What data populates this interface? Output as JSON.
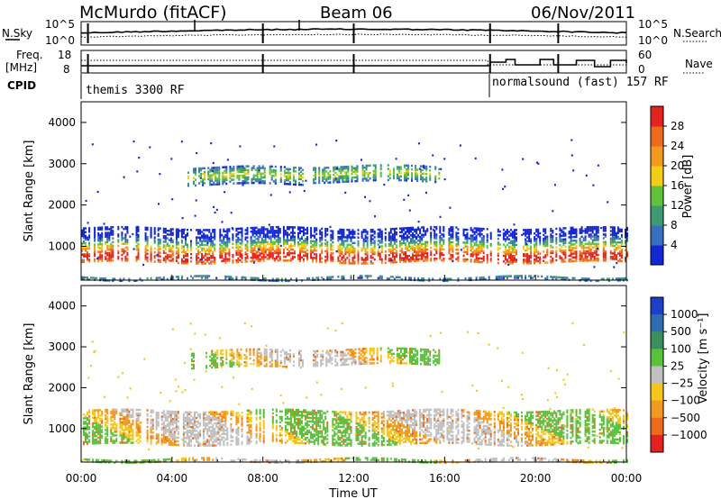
{
  "header": {
    "station": "McMurdo (fitACF)",
    "beam": "Beam 06",
    "date": "06/Nov/2011"
  },
  "left_labels": {
    "nsky": "N.Sky",
    "freq_top": "Freq.",
    "freq_unit": "[MHz]",
    "cpid": "CPID"
  },
  "right_labels": {
    "nsearch": "N.Search",
    "nave": "Nave"
  },
  "noise_panel": {
    "left_ticks": [
      "10^5",
      "10^0"
    ],
    "right_ticks": [
      "10^5",
      "10^0"
    ]
  },
  "freq_panel": {
    "left_ticks": [
      "18",
      "8"
    ],
    "right_ticks": [
      "60",
      "0"
    ]
  },
  "cpid_panel": {
    "mode1": "themis 3300 RF",
    "mode2": "normalsound (fast)  157 RF"
  },
  "chart_data": [
    {
      "type": "heatmap",
      "name": "power",
      "ylabel": "Slant Range [km]",
      "yticks": [
        "1000",
        "2000",
        "3000",
        "4000"
      ],
      "ylim": [
        180,
        4500
      ],
      "colorbar": {
        "title": "Power [dB]",
        "ticks": [
          "4",
          "8",
          "12",
          "16",
          "20",
          "24",
          "28"
        ],
        "colors": [
          "#1428d2",
          "#3a6fbf",
          "#3f9a74",
          "#5fc43c",
          "#f4cc1a",
          "#f29a1e",
          "#ee6a1d",
          "#e2231f"
        ]
      },
      "echo_bands": [
        {
          "t_start": 0.0,
          "t_end": 24.0,
          "range_low": 600,
          "range_high": 1450,
          "level": "mid-high"
        },
        {
          "t_start": 4.6,
          "t_end": 9.8,
          "range_low": 2480,
          "range_high": 2900,
          "level": "low-mid"
        },
        {
          "t_start": 10.2,
          "t_end": 15.8,
          "range_low": 2550,
          "range_high": 2950,
          "level": "low-mid"
        },
        {
          "t_start": 0.0,
          "t_end": 24.0,
          "range_low": 180,
          "range_high": 260,
          "level": "low"
        }
      ]
    },
    {
      "type": "heatmap",
      "name": "velocity",
      "ylabel": "Slant Range [km]",
      "yticks": [
        "1000",
        "2000",
        "3000",
        "4000"
      ],
      "ylim": [
        180,
        4500
      ],
      "xlabel": "Time UT",
      "xticks": [
        "00:00",
        "04:00",
        "08:00",
        "12:00",
        "16:00",
        "20:00",
        "00:00"
      ],
      "xlim": [
        0,
        24
      ],
      "colorbar": {
        "title": "Velocity  [m s⁻¹]",
        "ticks": [
          "1000",
          "500",
          "100",
          "25",
          "−25",
          "−100",
          "−500",
          "−1000"
        ],
        "colors": [
          "#1e3fc8",
          "#2f6db0",
          "#3a8f5a",
          "#59c23b",
          "#c0c0c0",
          "#f4c51b",
          "#f29a1e",
          "#ee6a1d",
          "#e2231f"
        ]
      }
    }
  ]
}
